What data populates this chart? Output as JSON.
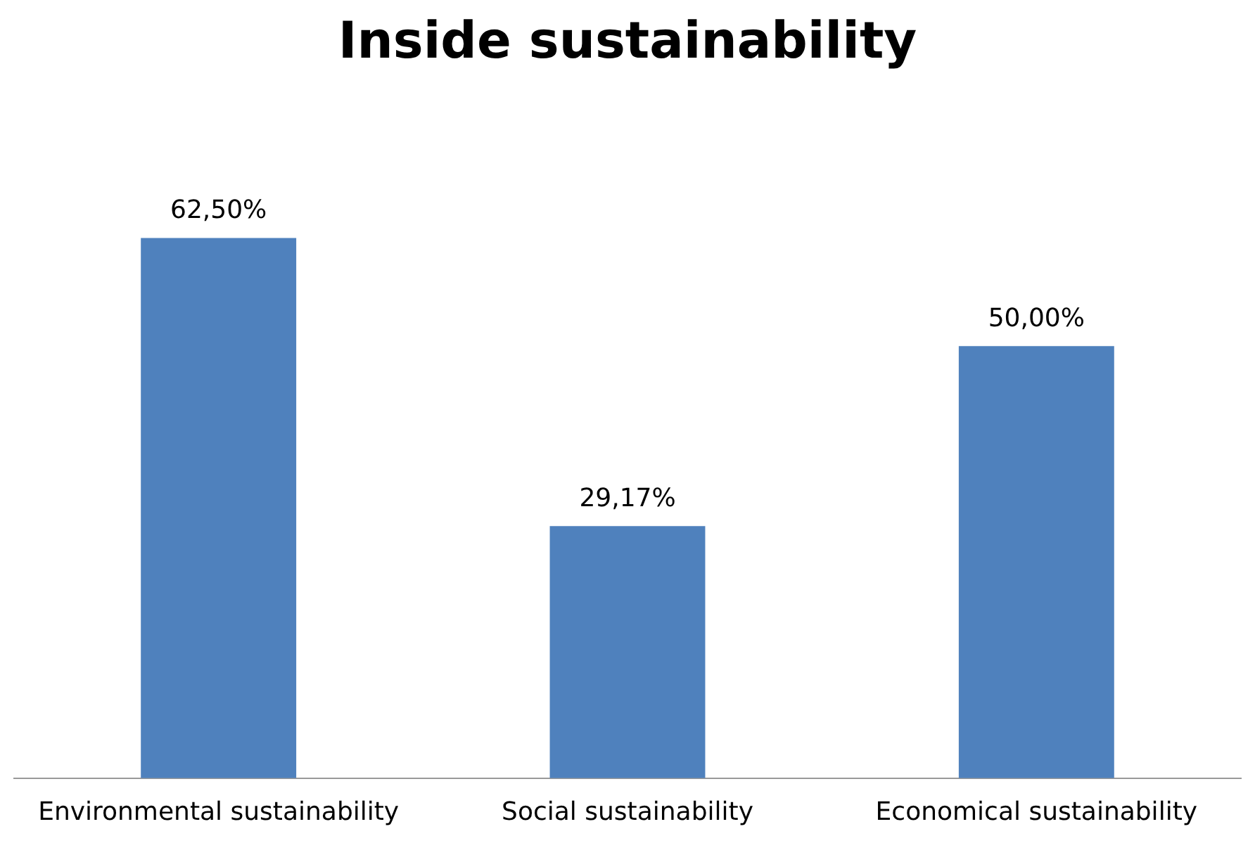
{
  "chart_data": {
    "type": "bar",
    "title": "Inside sustainability",
    "categories": [
      "Environmental sustainability",
      "Social sustainability",
      "Economical sustainability"
    ],
    "values": [
      62.5,
      29.17,
      50
    ],
    "value_labels": [
      "62,50%",
      "29,17%",
      "50,00%"
    ],
    "color": "#4f81bd",
    "grid": false,
    "legend": false
  }
}
